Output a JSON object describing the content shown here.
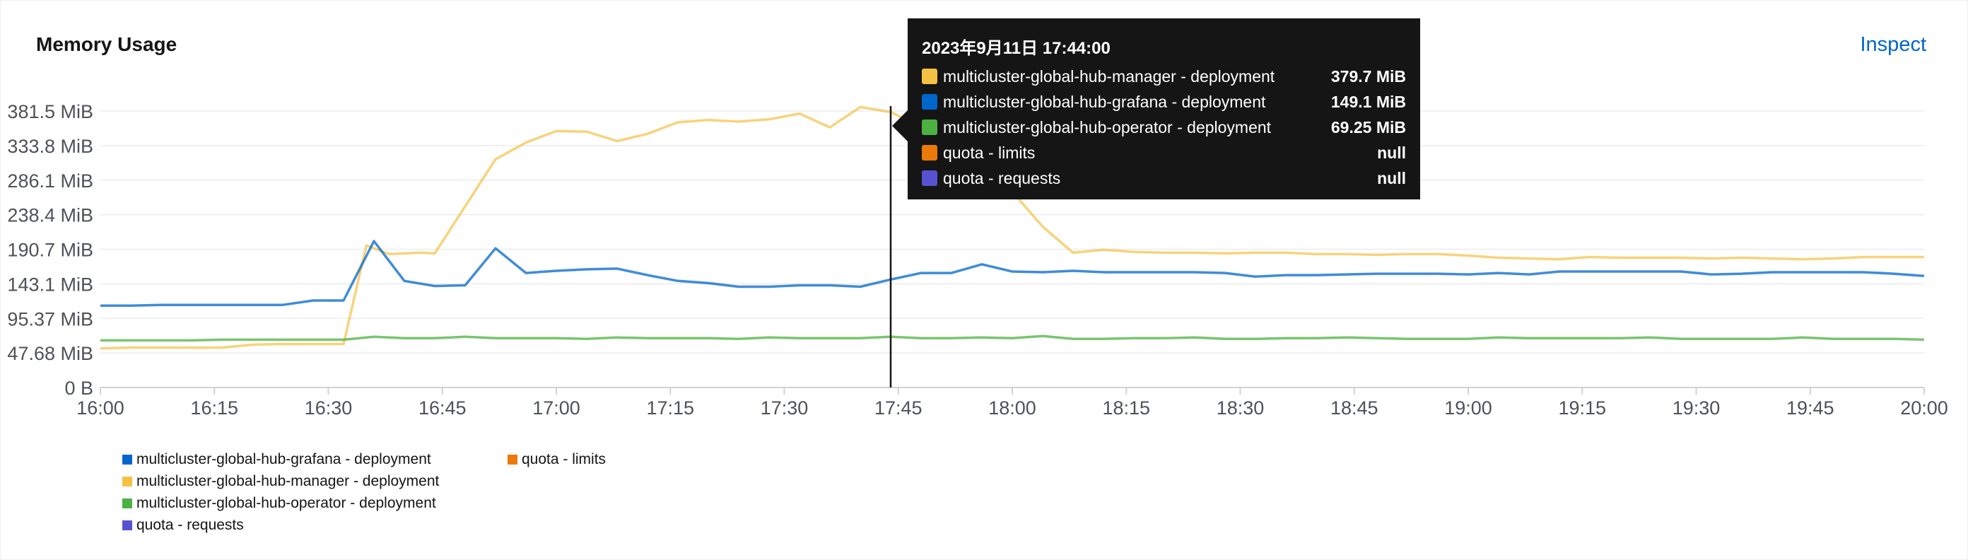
{
  "card": {
    "title": "Memory Usage",
    "inspect_label": "Inspect"
  },
  "tooltip": {
    "title": "2023年9月11日 17:44:00",
    "rows": [
      {
        "name": "multicluster-global-hub-manager - deployment",
        "value": "379.7 MiB",
        "color": "#f4c145"
      },
      {
        "name": "multicluster-global-hub-grafana - deployment",
        "value": "149.1 MiB",
        "color": "#0066cc"
      },
      {
        "name": "multicluster-global-hub-operator - deployment",
        "value": "69.25 MiB",
        "color": "#4cb140"
      },
      {
        "name": "quota - limits",
        "value": "null",
        "color": "#ec7a08"
      },
      {
        "name": "quota - requests",
        "value": "null",
        "color": "#5752d1"
      }
    ]
  },
  "legend": [
    {
      "name": "multicluster-global-hub-grafana - deployment",
      "color": "#0066cc"
    },
    {
      "name": "multicluster-global-hub-manager - deployment",
      "color": "#f4c145"
    },
    {
      "name": "multicluster-global-hub-operator - deployment",
      "color": "#4cb140"
    },
    {
      "name": "quota - requests",
      "color": "#5752d1"
    },
    {
      "name": "quota - limits",
      "color": "#ec7a08"
    }
  ],
  "chart_data": {
    "type": "line",
    "title": "Memory Usage",
    "xlabel": "",
    "ylabel": "",
    "ylim": [
      0,
      381.5
    ],
    "y_ticks": [
      "0 B",
      "47.68 MiB",
      "95.37 MiB",
      "143.1 MiB",
      "190.7 MiB",
      "238.4 MiB",
      "286.1 MiB",
      "333.8 MiB",
      "381.5 MiB"
    ],
    "y_tick_values": [
      0,
      47.68,
      95.37,
      143.1,
      190.7,
      238.4,
      286.1,
      333.8,
      381.5
    ],
    "x_ticks": [
      "16:00",
      "16:15",
      "16:30",
      "16:45",
      "17:00",
      "17:15",
      "17:30",
      "17:45",
      "18:00",
      "18:15",
      "18:30",
      "18:45",
      "19:00",
      "19:15",
      "19:30",
      "19:45",
      "20:00"
    ],
    "x_unit": "minutes after 16:00",
    "xlim": [
      0,
      240
    ],
    "hover_x": 104,
    "grid": true,
    "legend_position": "bottom",
    "series": [
      {
        "name": "multicluster-global-hub-manager - deployment",
        "color": "#f4c145",
        "points": [
          [
            0,
            54
          ],
          [
            4,
            55
          ],
          [
            8,
            55
          ],
          [
            12,
            55
          ],
          [
            16,
            55
          ],
          [
            20,
            59
          ],
          [
            24,
            60
          ],
          [
            28,
            60
          ],
          [
            32,
            60
          ],
          [
            35,
            196
          ],
          [
            38,
            184
          ],
          [
            42,
            186
          ],
          [
            44,
            185
          ],
          [
            48,
            250
          ],
          [
            52,
            315
          ],
          [
            56,
            338
          ],
          [
            60,
            354
          ],
          [
            64,
            353
          ],
          [
            68,
            340
          ],
          [
            72,
            350
          ],
          [
            76,
            366
          ],
          [
            80,
            369
          ],
          [
            84,
            367
          ],
          [
            88,
            370
          ],
          [
            92,
            378
          ],
          [
            96,
            359
          ],
          [
            100,
            387
          ],
          [
            104,
            380
          ],
          [
            108,
            360
          ],
          [
            112,
            340
          ],
          [
            116,
            300
          ],
          [
            120,
            270
          ],
          [
            124,
            222
          ],
          [
            128,
            186
          ],
          [
            132,
            190
          ],
          [
            136,
            187
          ],
          [
            140,
            186
          ],
          [
            144,
            186
          ],
          [
            148,
            185
          ],
          [
            152,
            186
          ],
          [
            156,
            186
          ],
          [
            160,
            184
          ],
          [
            164,
            184
          ],
          [
            168,
            183
          ],
          [
            172,
            184
          ],
          [
            176,
            184
          ],
          [
            180,
            182
          ],
          [
            184,
            179
          ],
          [
            188,
            178
          ],
          [
            192,
            177
          ],
          [
            196,
            180
          ],
          [
            200,
            179
          ],
          [
            204,
            179
          ],
          [
            208,
            179
          ],
          [
            212,
            178
          ],
          [
            216,
            179
          ],
          [
            220,
            178
          ],
          [
            224,
            177
          ],
          [
            228,
            178
          ],
          [
            232,
            180
          ],
          [
            236,
            180
          ],
          [
            240,
            180
          ]
        ]
      },
      {
        "name": "multicluster-global-hub-grafana - deployment",
        "color": "#0066cc",
        "points": [
          [
            0,
            113
          ],
          [
            4,
            113
          ],
          [
            8,
            114
          ],
          [
            12,
            114
          ],
          [
            16,
            114
          ],
          [
            20,
            114
          ],
          [
            24,
            114
          ],
          [
            28,
            120
          ],
          [
            32,
            120
          ],
          [
            36,
            202
          ],
          [
            40,
            147
          ],
          [
            44,
            140
          ],
          [
            48,
            141
          ],
          [
            52,
            192
          ],
          [
            56,
            158
          ],
          [
            60,
            161
          ],
          [
            64,
            163
          ],
          [
            68,
            164
          ],
          [
            72,
            155
          ],
          [
            76,
            147
          ],
          [
            80,
            144
          ],
          [
            84,
            139
          ],
          [
            88,
            139
          ],
          [
            92,
            141
          ],
          [
            96,
            141
          ],
          [
            100,
            139
          ],
          [
            104,
            149
          ],
          [
            108,
            158
          ],
          [
            112,
            158
          ],
          [
            116,
            170
          ],
          [
            120,
            160
          ],
          [
            124,
            159
          ],
          [
            128,
            161
          ],
          [
            132,
            159
          ],
          [
            136,
            159
          ],
          [
            140,
            159
          ],
          [
            144,
            159
          ],
          [
            148,
            158
          ],
          [
            152,
            153
          ],
          [
            156,
            155
          ],
          [
            160,
            155
          ],
          [
            164,
            156
          ],
          [
            168,
            157
          ],
          [
            172,
            157
          ],
          [
            176,
            157
          ],
          [
            180,
            156
          ],
          [
            184,
            158
          ],
          [
            188,
            156
          ],
          [
            192,
            160
          ],
          [
            196,
            160
          ],
          [
            200,
            160
          ],
          [
            204,
            160
          ],
          [
            208,
            160
          ],
          [
            212,
            156
          ],
          [
            216,
            157
          ],
          [
            220,
            159
          ],
          [
            224,
            159
          ],
          [
            228,
            159
          ],
          [
            232,
            159
          ],
          [
            236,
            157
          ],
          [
            240,
            154
          ]
        ]
      },
      {
        "name": "multicluster-global-hub-operator - deployment",
        "color": "#4cb140",
        "points": [
          [
            0,
            65
          ],
          [
            4,
            65
          ],
          [
            8,
            65
          ],
          [
            12,
            65
          ],
          [
            16,
            66
          ],
          [
            20,
            66
          ],
          [
            24,
            66
          ],
          [
            28,
            66
          ],
          [
            32,
            66
          ],
          [
            36,
            70
          ],
          [
            40,
            68
          ],
          [
            44,
            68
          ],
          [
            48,
            70
          ],
          [
            52,
            68
          ],
          [
            56,
            68
          ],
          [
            60,
            68
          ],
          [
            64,
            67
          ],
          [
            68,
            69
          ],
          [
            72,
            68
          ],
          [
            76,
            68
          ],
          [
            80,
            68
          ],
          [
            84,
            67
          ],
          [
            88,
            69
          ],
          [
            92,
            68
          ],
          [
            96,
            68
          ],
          [
            100,
            68
          ],
          [
            104,
            70
          ],
          [
            108,
            68
          ],
          [
            112,
            68
          ],
          [
            116,
            69
          ],
          [
            120,
            68
          ],
          [
            124,
            71
          ],
          [
            128,
            67
          ],
          [
            132,
            67
          ],
          [
            136,
            68
          ],
          [
            140,
            68
          ],
          [
            144,
            69
          ],
          [
            148,
            67
          ],
          [
            152,
            67
          ],
          [
            156,
            68
          ],
          [
            160,
            68
          ],
          [
            164,
            69
          ],
          [
            168,
            68
          ],
          [
            172,
            67
          ],
          [
            176,
            67
          ],
          [
            180,
            67
          ],
          [
            184,
            69
          ],
          [
            188,
            68
          ],
          [
            192,
            68
          ],
          [
            196,
            68
          ],
          [
            200,
            68
          ],
          [
            204,
            69
          ],
          [
            208,
            67
          ],
          [
            212,
            67
          ],
          [
            216,
            67
          ],
          [
            220,
            67
          ],
          [
            224,
            69
          ],
          [
            228,
            67
          ],
          [
            232,
            67
          ],
          [
            236,
            67
          ],
          [
            240,
            66
          ]
        ]
      }
    ]
  }
}
